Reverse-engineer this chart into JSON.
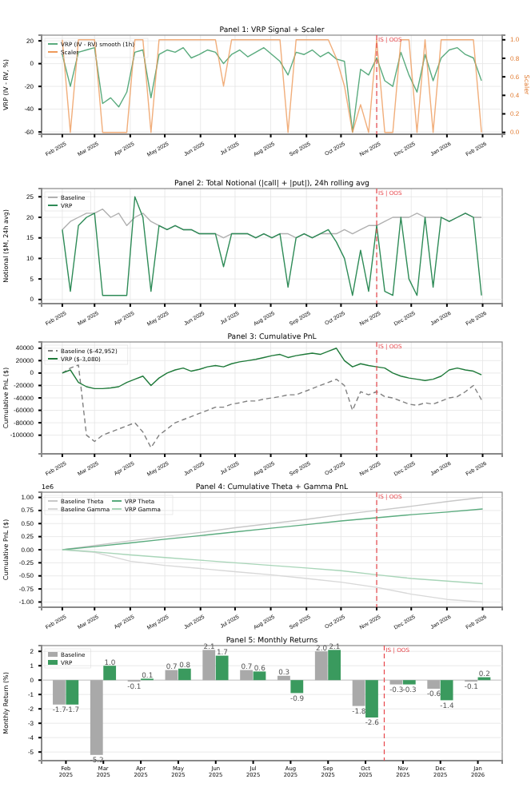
{
  "chart_data": [
    {
      "type": "line",
      "title": "Panel 1: VRP Signal + Scaler",
      "ylabel": "VRP (IV - RV, %)",
      "y2label": "Scaler",
      "grid": true,
      "legend": "top left",
      "x": [
        "2025-02-01",
        "2025-02-08",
        "2025-02-15",
        "2025-02-22",
        "2025-03-01",
        "2025-03-08",
        "2025-03-15",
        "2025-03-22",
        "2025-03-29",
        "2025-04-05",
        "2025-04-12",
        "2025-04-19",
        "2025-04-26",
        "2025-05-03",
        "2025-05-10",
        "2025-05-17",
        "2025-05-24",
        "2025-05-31",
        "2025-06-07",
        "2025-06-14",
        "2025-06-21",
        "2025-06-28",
        "2025-07-05",
        "2025-07-12",
        "2025-07-19",
        "2025-07-26",
        "2025-08-02",
        "2025-08-09",
        "2025-08-16",
        "2025-08-23",
        "2025-08-30",
        "2025-09-06",
        "2025-09-13",
        "2025-09-20",
        "2025-09-27",
        "2025-10-04",
        "2025-10-11",
        "2025-10-18",
        "2025-10-25",
        "2025-11-01",
        "2025-11-08",
        "2025-11-15",
        "2025-11-22",
        "2025-11-29",
        "2025-12-06",
        "2025-12-13",
        "2025-12-20",
        "2025-12-27",
        "2026-01-03",
        "2026-01-10",
        "2026-01-17",
        "2026-01-24",
        "2026-01-31"
      ],
      "xlim": [
        "2025-01-14",
        "2026-02-18"
      ],
      "xticks": [
        {
          "value": "2025-02-01",
          "label": "Feb 2025"
        },
        {
          "value": "2025-03-01",
          "label": "Mar 2025"
        },
        {
          "value": "2025-04-01",
          "label": "Apr 2025"
        },
        {
          "value": "2025-05-01",
          "label": "May 2025"
        },
        {
          "value": "2025-06-01",
          "label": "Jun 2025"
        },
        {
          "value": "2025-07-01",
          "label": "Jul 2025"
        },
        {
          "value": "2025-08-01",
          "label": "Aug 2025"
        },
        {
          "value": "2025-09-01",
          "label": "Sep 2025"
        },
        {
          "value": "2025-10-01",
          "label": "Oct 2025"
        },
        {
          "value": "2025-11-01",
          "label": "Nov 2025"
        },
        {
          "value": "2025-12-01",
          "label": "Dec 2025"
        },
        {
          "value": "2026-01-01",
          "label": "Jan 2026"
        },
        {
          "value": "2026-02-01",
          "label": "Feb 2026"
        }
      ],
      "ylim": [
        -62,
        25
      ],
      "yticks": [
        20,
        0,
        -20,
        -40,
        -60
      ],
      "y2lim": [
        -0.02,
        1.05
      ],
      "y2ticks": [
        {
          "value": 0,
          "label": "0.0"
        },
        {
          "value": 0.2,
          "label": "0.2"
        },
        {
          "value": 0.4,
          "label": "0.4"
        },
        {
          "value": 0.6,
          "label": "0.6"
        },
        {
          "value": 0.8,
          "label": "0.8"
        },
        {
          "value": 1,
          "label": "1.0"
        }
      ],
      "ref_lines": [
        {
          "axis": "x",
          "value": "2025-11-01",
          "label": "IS | OOS",
          "color": "#e8474c",
          "line_style": "dashed"
        }
      ],
      "series": [
        {
          "name": "VRP (IV - RV) smooth (1h)",
          "color": "#5aab7e",
          "values": [
            8,
            -20,
            10,
            12,
            14,
            -35,
            -30,
            -38,
            -25,
            10,
            12,
            -30,
            8,
            12,
            10,
            14,
            5,
            8,
            12,
            10,
            0,
            8,
            12,
            6,
            10,
            14,
            8,
            2,
            -10,
            10,
            8,
            12,
            6,
            10,
            4,
            2,
            -60,
            -5,
            -10,
            5,
            -15,
            -20,
            10,
            -10,
            -25,
            8,
            -15,
            5,
            12,
            14,
            8,
            5,
            -15
          ]
        },
        {
          "name": "Scaler",
          "color": "#ee9a5a",
          "axis": "y2",
          "values": [
            1,
            0,
            1,
            1,
            1,
            0,
            0,
            0,
            0,
            1,
            1,
            0,
            1,
            1,
            1,
            1,
            1,
            1,
            1,
            1,
            0.5,
            1,
            1,
            1,
            1,
            1,
            1,
            1,
            0,
            1,
            1,
            1,
            1,
            1,
            0.8,
            0.5,
            0,
            0.3,
            0,
            1,
            0,
            0,
            1,
            1,
            0,
            1,
            0,
            1,
            1,
            1,
            1,
            1,
            0
          ]
        }
      ]
    },
    {
      "type": "line",
      "title": "Panel 2: Total Notional (|call| + |put|), 24h rolling avg",
      "ylabel": "Notional ($M, 24h avg)",
      "grid": true,
      "legend": "top left",
      "x": [
        "2025-02-01",
        "2025-02-08",
        "2025-02-15",
        "2025-02-22",
        "2025-03-01",
        "2025-03-08",
        "2025-03-15",
        "2025-03-22",
        "2025-03-29",
        "2025-04-05",
        "2025-04-12",
        "2025-04-19",
        "2025-04-26",
        "2025-05-03",
        "2025-05-10",
        "2025-05-17",
        "2025-05-24",
        "2025-05-31",
        "2025-06-07",
        "2025-06-14",
        "2025-06-21",
        "2025-06-28",
        "2025-07-05",
        "2025-07-12",
        "2025-07-19",
        "2025-07-26",
        "2025-08-02",
        "2025-08-09",
        "2025-08-16",
        "2025-08-23",
        "2025-08-30",
        "2025-09-06",
        "2025-09-13",
        "2025-09-20",
        "2025-09-27",
        "2025-10-04",
        "2025-10-11",
        "2025-10-18",
        "2025-10-25",
        "2025-11-01",
        "2025-11-08",
        "2025-11-15",
        "2025-11-22",
        "2025-11-29",
        "2025-12-06",
        "2025-12-13",
        "2025-12-20",
        "2025-12-27",
        "2026-01-03",
        "2026-01-10",
        "2026-01-17",
        "2026-01-24",
        "2026-01-31"
      ],
      "xlim": [
        "2025-01-14",
        "2026-02-18"
      ],
      "xticks": [
        {
          "value": "2025-02-01",
          "label": "Feb 2025"
        },
        {
          "value": "2025-03-01",
          "label": "Mar 2025"
        },
        {
          "value": "2025-04-01",
          "label": "Apr 2025"
        },
        {
          "value": "2025-05-01",
          "label": "May 2025"
        },
        {
          "value": "2025-06-01",
          "label": "Jun 2025"
        },
        {
          "value": "2025-07-01",
          "label": "Jul 2025"
        },
        {
          "value": "2025-08-01",
          "label": "Aug 2025"
        },
        {
          "value": "2025-09-01",
          "label": "Sep 2025"
        },
        {
          "value": "2025-10-01",
          "label": "Oct 2025"
        },
        {
          "value": "2025-11-01",
          "label": "Nov 2025"
        },
        {
          "value": "2025-12-01",
          "label": "Dec 2025"
        },
        {
          "value": "2026-01-01",
          "label": "Jan 2026"
        },
        {
          "value": "2026-02-01",
          "label": "Feb 2026"
        }
      ],
      "ylim": [
        -1,
        27
      ],
      "yticks": [
        0,
        5,
        10,
        15,
        20,
        25
      ],
      "ref_lines": [
        {
          "axis": "x",
          "value": "2025-11-01",
          "label": "IS | OOS",
          "color": "#e8474c",
          "line_style": "dashed"
        }
      ],
      "series": [
        {
          "name": "Baseline",
          "color": "#b0b0b0",
          "values": [
            17,
            19,
            20,
            21,
            21,
            22,
            20,
            21,
            18,
            20,
            21,
            19,
            18,
            17,
            18,
            17,
            17,
            16,
            16,
            16,
            15,
            16,
            16,
            16,
            15,
            16,
            15,
            16,
            16,
            15,
            16,
            15,
            16,
            16,
            16,
            17,
            16,
            17,
            18,
            18,
            19,
            20,
            20,
            20,
            21,
            20,
            20,
            20,
            19,
            20,
            21,
            20,
            20
          ]
        },
        {
          "name": "VRP",
          "color": "#2e8b57",
          "values": [
            17,
            2,
            18,
            20,
            21,
            1,
            1,
            1,
            1,
            25,
            20,
            2,
            18,
            17,
            18,
            17,
            17,
            16,
            16,
            16,
            8,
            16,
            16,
            16,
            15,
            16,
            15,
            16,
            3,
            15,
            16,
            15,
            16,
            17,
            14,
            10,
            1,
            12,
            2,
            18,
            2,
            1,
            20,
            5,
            1,
            20,
            3,
            20,
            19,
            20,
            21,
            20,
            1
          ]
        }
      ]
    },
    {
      "type": "line",
      "title": "Panel 3: Cumulative PnL",
      "ylabel": "Cumulative PnL ($)",
      "grid": true,
      "legend": "top left",
      "x": [
        "2025-02-01",
        "2025-02-08",
        "2025-02-15",
        "2025-02-22",
        "2025-03-01",
        "2025-03-08",
        "2025-03-15",
        "2025-03-22",
        "2025-03-29",
        "2025-04-05",
        "2025-04-12",
        "2025-04-19",
        "2025-04-26",
        "2025-05-03",
        "2025-05-10",
        "2025-05-17",
        "2025-05-24",
        "2025-05-31",
        "2025-06-07",
        "2025-06-14",
        "2025-06-21",
        "2025-06-28",
        "2025-07-05",
        "2025-07-12",
        "2025-07-19",
        "2025-07-26",
        "2025-08-02",
        "2025-08-09",
        "2025-08-16",
        "2025-08-23",
        "2025-08-30",
        "2025-09-06",
        "2025-09-13",
        "2025-09-20",
        "2025-09-27",
        "2025-10-04",
        "2025-10-11",
        "2025-10-18",
        "2025-10-25",
        "2025-11-01",
        "2025-11-08",
        "2025-11-15",
        "2025-11-22",
        "2025-11-29",
        "2025-12-06",
        "2025-12-13",
        "2025-12-20",
        "2025-12-27",
        "2026-01-03",
        "2026-01-10",
        "2026-01-17",
        "2026-01-24",
        "2026-01-31"
      ],
      "xlim": [
        "2025-01-14",
        "2026-02-18"
      ],
      "xticks": [
        {
          "value": "2025-02-01",
          "label": "Feb 2025"
        },
        {
          "value": "2025-03-01",
          "label": "Mar 2025"
        },
        {
          "value": "2025-04-01",
          "label": "Apr 2025"
        },
        {
          "value": "2025-05-01",
          "label": "May 2025"
        },
        {
          "value": "2025-06-01",
          "label": "Jun 2025"
        },
        {
          "value": "2025-07-01",
          "label": "Jul 2025"
        },
        {
          "value": "2025-08-01",
          "label": "Aug 2025"
        },
        {
          "value": "2025-09-01",
          "label": "Sep 2025"
        },
        {
          "value": "2025-10-01",
          "label": "Oct 2025"
        },
        {
          "value": "2025-11-01",
          "label": "Nov 2025"
        },
        {
          "value": "2025-12-01",
          "label": "Dec 2025"
        },
        {
          "value": "2026-01-01",
          "label": "Jan 2026"
        },
        {
          "value": "2026-02-01",
          "label": "Feb 2026"
        }
      ],
      "ylim": [
        -130000,
        50000
      ],
      "yticks": [
        40000,
        20000,
        0,
        -20000,
        -40000,
        -60000,
        -80000,
        -100000
      ],
      "ref_lines": [
        {
          "axis": "x",
          "value": "2025-11-01",
          "label": "IS | OOS",
          "color": "#e8474c",
          "line_style": "dashed"
        }
      ],
      "series": [
        {
          "name": "Baseline ($-42,952)",
          "color": "#808080",
          "line_style": "dashed",
          "values": [
            0,
            8000,
            13000,
            -100000,
            -110000,
            -100000,
            -95000,
            -90000,
            -85000,
            -80000,
            -95000,
            -120000,
            -100000,
            -90000,
            -80000,
            -75000,
            -70000,
            -65000,
            -60000,
            -55000,
            -55000,
            -50000,
            -48000,
            -45000,
            -45000,
            -42000,
            -40000,
            -38000,
            -35000,
            -35000,
            -30000,
            -25000,
            -20000,
            -15000,
            -10000,
            -20000,
            -60000,
            -30000,
            -35000,
            -30000,
            -38000,
            -40000,
            -45000,
            -50000,
            -52000,
            -48000,
            -50000,
            -45000,
            -40000,
            -38000,
            -30000,
            -20000,
            -43000
          ]
        },
        {
          "name": "VRP ($-3,080)",
          "color": "#1f7a3a",
          "values": [
            0,
            5000,
            -15000,
            -22000,
            -25000,
            -25000,
            -24000,
            -22000,
            -15000,
            -10000,
            -5000,
            -20000,
            -8000,
            0,
            5000,
            8000,
            3000,
            6000,
            10000,
            12000,
            10000,
            15000,
            18000,
            20000,
            22000,
            25000,
            28000,
            30000,
            25000,
            28000,
            30000,
            32000,
            30000,
            35000,
            40000,
            20000,
            10000,
            15000,
            12000,
            10000,
            8000,
            0,
            -5000,
            -8000,
            -10000,
            -12000,
            -10000,
            -5000,
            5000,
            8000,
            5000,
            3000,
            -3000
          ]
        }
      ]
    },
    {
      "type": "line",
      "title": "Panel 4: Cumulative Theta + Gamma PnL",
      "ylabel": "Cumulative PnL ($)",
      "grid": true,
      "legend": "top left",
      "annotations": [
        "1e6"
      ],
      "x": [
        "2025-02-01",
        "2025-03-01",
        "2025-04-01",
        "2025-05-01",
        "2025-06-01",
        "2025-07-01",
        "2025-08-01",
        "2025-09-01",
        "2025-10-01",
        "2025-11-01",
        "2025-12-01",
        "2026-01-01",
        "2026-02-01"
      ],
      "xlim": [
        "2025-01-14",
        "2026-02-18"
      ],
      "xticks": [
        {
          "value": "2025-02-01",
          "label": "Feb 2025"
        },
        {
          "value": "2025-03-01",
          "label": "Mar 2025"
        },
        {
          "value": "2025-04-01",
          "label": "Apr 2025"
        },
        {
          "value": "2025-05-01",
          "label": "May 2025"
        },
        {
          "value": "2025-06-01",
          "label": "Jun 2025"
        },
        {
          "value": "2025-07-01",
          "label": "Jul 2025"
        },
        {
          "value": "2025-08-01",
          "label": "Aug 2025"
        },
        {
          "value": "2025-09-01",
          "label": "Sep 2025"
        },
        {
          "value": "2025-10-01",
          "label": "Oct 2025"
        },
        {
          "value": "2025-11-01",
          "label": "Nov 2025"
        },
        {
          "value": "2025-12-01",
          "label": "Dec 2025"
        },
        {
          "value": "2026-01-01",
          "label": "Jan 2026"
        },
        {
          "value": "2026-02-01",
          "label": "Feb 2026"
        }
      ],
      "ylim": [
        -1.1,
        1.1
      ],
      "yticks": [
        {
          "value": 1,
          "label": "1.00"
        },
        {
          "value": 0.75,
          "label": "0.75"
        },
        {
          "value": 0.5,
          "label": "0.50"
        },
        {
          "value": 0.25,
          "label": "0.25"
        },
        {
          "value": 0,
          "label": "0.00"
        },
        {
          "value": -0.25,
          "label": "-0.25"
        },
        {
          "value": -0.5,
          "label": "-0.50"
        },
        {
          "value": -0.75,
          "label": "-0.75"
        },
        {
          "value": -1,
          "label": "-1.00"
        }
      ],
      "ref_lines": [
        {
          "axis": "x",
          "value": "2025-11-01",
          "label": "IS | OOS",
          "color": "#e8474c",
          "line_style": "dashed"
        }
      ],
      "series": [
        {
          "name": "Baseline Theta",
          "color": "#c8c8c8",
          "values": [
            0,
            0.08,
            0.17,
            0.25,
            0.33,
            0.42,
            0.5,
            0.58,
            0.67,
            0.75,
            0.83,
            0.92,
            1.0
          ]
        },
        {
          "name": "Baseline Gamma",
          "color": "#d8d8d8",
          "values": [
            0,
            -0.05,
            -0.22,
            -0.3,
            -0.36,
            -0.42,
            -0.48,
            -0.55,
            -0.62,
            -0.72,
            -0.85,
            -0.95,
            -1.0
          ]
        },
        {
          "name": "VRP Theta",
          "color": "#5aab7e",
          "values": [
            0,
            0.06,
            0.13,
            0.2,
            0.27,
            0.34,
            0.41,
            0.48,
            0.55,
            0.61,
            0.67,
            0.72,
            0.78
          ]
        },
        {
          "name": "VRP Gamma",
          "color": "#a8d5b8",
          "values": [
            0,
            -0.04,
            -0.1,
            -0.15,
            -0.2,
            -0.25,
            -0.3,
            -0.35,
            -0.4,
            -0.48,
            -0.55,
            -0.6,
            -0.65
          ]
        }
      ]
    },
    {
      "type": "bar",
      "title": "Panel 5: Monthly Returns",
      "ylabel": "Monthly Return (%)",
      "grid": "y",
      "legend": "top left",
      "categories": [
        "Feb 2025",
        "Mar 2025",
        "Apr 2025",
        "May 2025",
        "Jun 2025",
        "Jul 2025",
        "Aug 2025",
        "Sep 2025",
        "Oct 2025",
        "Nov 2025",
        "Dec 2025",
        "Jan 2026"
      ],
      "ylim": [
        -5.6,
        2.4
      ],
      "yticks": [
        2,
        1,
        0,
        -1,
        -2,
        -3,
        -4,
        -5
      ],
      "ref_lines": [
        {
          "axis": "x",
          "value": "Nov 2025",
          "label": "IS | OOS",
          "color": "#e8474c",
          "line_style": "dashed"
        }
      ],
      "series": [
        {
          "name": "Baseline",
          "color": "#a9a9a9",
          "values": [
            -1.7,
            -5.2,
            -0.1,
            0.7,
            2.1,
            0.7,
            0.3,
            2.0,
            -1.8,
            -0.3,
            -0.6,
            -0.1
          ],
          "value_labels": [
            "-1.7",
            "-5.2",
            "-0.1",
            "0.7",
            "2.1",
            "0.7",
            "0.3",
            "2.0",
            "-1.8",
            "-0.3",
            "-0.6",
            "-0.1"
          ]
        },
        {
          "name": "VRP",
          "color": "#3a9a5e",
          "values": [
            -1.7,
            1.0,
            0.1,
            0.8,
            1.7,
            0.6,
            -0.9,
            2.1,
            -2.6,
            -0.3,
            -1.4,
            0.2
          ],
          "value_labels": [
            "-1.7",
            "1.0",
            "0.1",
            "0.8",
            "1.7",
            "0.6",
            "-0.9",
            "2.1",
            "-2.6",
            "-0.3",
            "-1.4",
            "0.2"
          ]
        }
      ]
    }
  ]
}
